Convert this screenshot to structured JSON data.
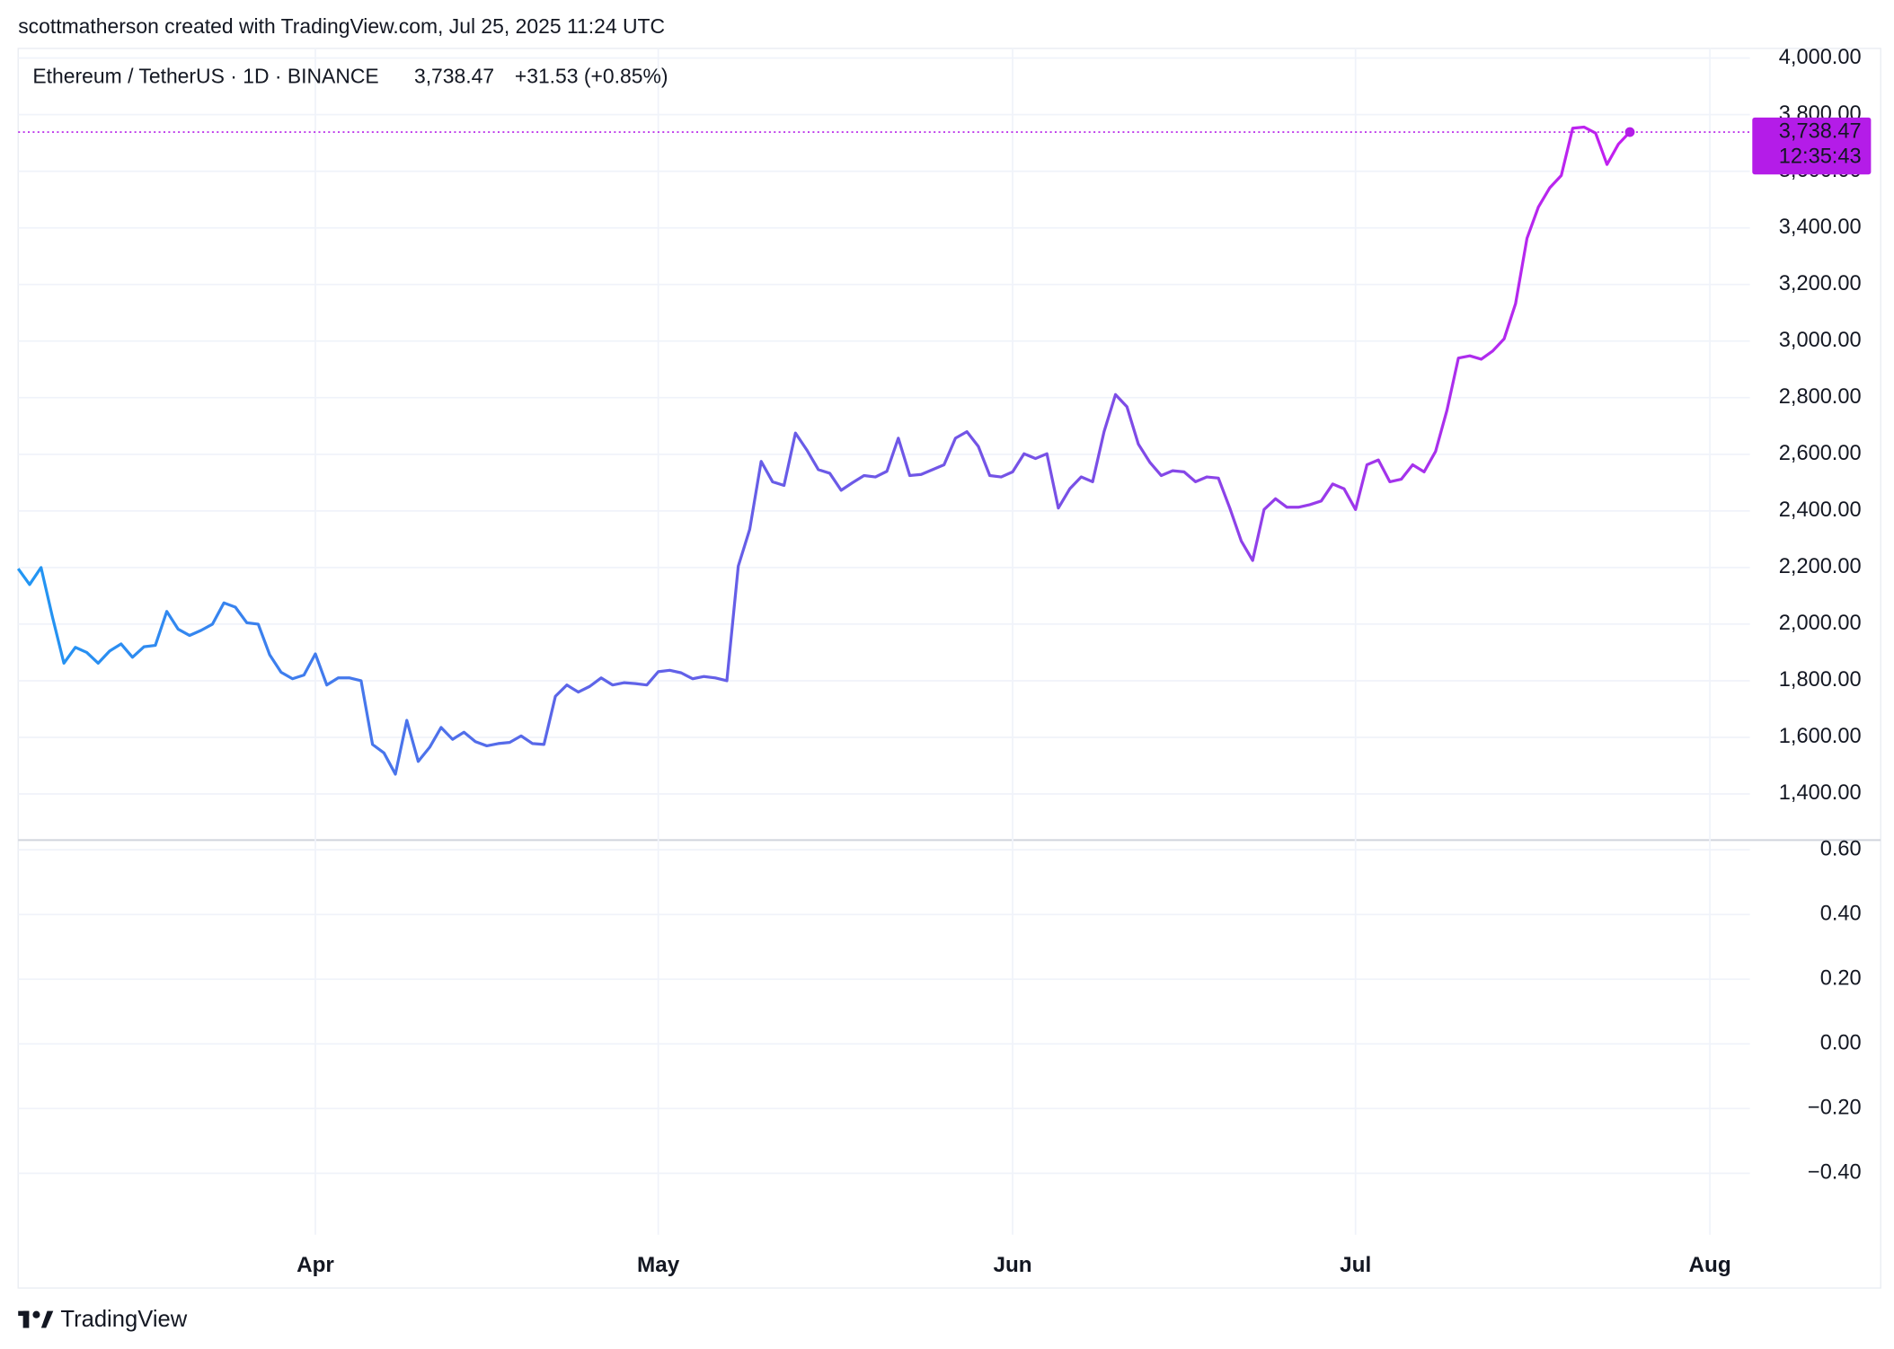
{
  "credit": "scottmatherson created with TradingView.com, Jul 25, 2025 11:24 UTC",
  "brand": "TradingView",
  "chart_data": [
    {
      "type": "line",
      "symbol": "Ethereum / TetherUS · 1D · BINANCE",
      "last_price": {
        "value": 3738.47,
        "label": "3,738.47"
      },
      "change": "+31.53 (+0.85%)",
      "countdown": "12:35:43",
      "price_color": "#b41ce8",
      "grid": true,
      "xlim": [
        0,
        151.5
      ],
      "xticks": [
        {
          "value": 26,
          "label": "Apr"
        },
        {
          "value": 56,
          "label": "May"
        },
        {
          "value": 87,
          "label": "Jun"
        },
        {
          "value": 117,
          "label": "Jul"
        },
        {
          "value": 148,
          "label": "Aug"
        }
      ],
      "ylim": [
        1237,
        4034
      ],
      "yticks": [
        {
          "value": 1400,
          "label": "1,400.00"
        },
        {
          "value": 1600,
          "label": "1,600.00"
        },
        {
          "value": 1800,
          "label": "1,800.00"
        },
        {
          "value": 2000,
          "label": "2,000.00"
        },
        {
          "value": 2200,
          "label": "2,200.00"
        },
        {
          "value": 2400,
          "label": "2,400.00"
        },
        {
          "value": 2600,
          "label": "2,600.00"
        },
        {
          "value": 2800,
          "label": "2,800.00"
        },
        {
          "value": 3000,
          "label": "3,000.00"
        },
        {
          "value": 3200,
          "label": "3,200.00"
        },
        {
          "value": 3400,
          "label": "3,400.00"
        },
        {
          "value": 3600,
          "label": "3,600.00"
        },
        {
          "value": 3800,
          "label": "3,800.00"
        },
        {
          "value": 4000,
          "label": "4,000.00"
        }
      ],
      "series": [
        {
          "gradient": [
            "#2196f3",
            "#5b66e8",
            "#7a4fe6",
            "#c41ef0"
          ],
          "x": [
            0,
            1,
            2,
            3,
            4,
            5,
            6,
            7,
            8,
            9,
            10,
            11,
            12,
            13,
            14,
            15,
            16,
            17,
            18,
            19,
            20,
            21,
            22,
            23,
            24,
            25,
            26,
            27,
            28,
            29,
            30,
            31,
            32,
            33,
            34,
            35,
            36,
            37,
            38,
            39,
            40,
            41,
            42,
            43,
            44,
            45,
            46,
            47,
            48,
            49,
            50,
            51,
            52,
            53,
            54,
            55,
            56,
            57,
            58,
            59,
            60,
            61,
            62,
            63,
            64,
            65,
            66,
            67,
            68,
            69,
            70,
            71,
            72,
            73,
            74,
            75,
            76,
            77,
            78,
            79,
            80,
            81,
            82,
            83,
            84,
            85,
            86,
            87,
            88,
            89,
            90,
            91,
            92,
            93,
            94,
            95,
            96,
            97,
            98,
            99,
            100,
            101,
            102,
            103,
            104,
            105,
            106,
            107,
            108,
            109,
            110,
            111,
            112,
            113,
            114,
            115,
            116,
            117,
            118,
            119,
            120,
            121,
            122,
            123,
            124,
            125,
            126,
            127,
            128,
            129,
            130,
            131,
            132,
            133,
            134,
            135,
            136,
            137,
            138,
            139,
            140,
            141
          ],
          "values": [
            2196,
            2140,
            2200,
            2025,
            1862,
            1918,
            1900,
            1862,
            1905,
            1930,
            1883,
            1920,
            1925,
            2045,
            1982,
            1960,
            1978,
            2000,
            2075,
            2060,
            2005,
            2000,
            1892,
            1830,
            1807,
            1820,
            1895,
            1785,
            1810,
            1810,
            1800,
            1575,
            1545,
            1470,
            1660,
            1515,
            1565,
            1635,
            1593,
            1618,
            1585,
            1570,
            1578,
            1582,
            1605,
            1578,
            1575,
            1745,
            1785,
            1760,
            1780,
            1810,
            1785,
            1793,
            1790,
            1785,
            1832,
            1837,
            1828,
            1807,
            1815,
            1810,
            1800,
            2205,
            2335,
            2575,
            2503,
            2490,
            2675,
            2615,
            2546,
            2533,
            2473,
            2500,
            2525,
            2520,
            2540,
            2657,
            2525,
            2529,
            2546,
            2563,
            2657,
            2680,
            2628,
            2525,
            2520,
            2538,
            2602,
            2585,
            2602,
            2410,
            2478,
            2520,
            2503,
            2680,
            2811,
            2768,
            2636,
            2572,
            2525,
            2542,
            2538,
            2503,
            2520,
            2516,
            2410,
            2294,
            2225,
            2405,
            2443,
            2413,
            2413,
            2422,
            2435,
            2495,
            2478,
            2405,
            2563,
            2580,
            2503,
            2512,
            2563,
            2538,
            2610,
            2756,
            2940,
            2948,
            2936,
            2965,
            3008,
            3132,
            3363,
            3474,
            3542,
            3585,
            3752,
            3756,
            3735,
            3624,
            3696,
            3738.47
          ]
        }
      ]
    },
    {
      "type": "pane",
      "ylim": [
        -0.59,
        0.63
      ],
      "yticks": [
        {
          "value": 0.6,
          "label": "0.60"
        },
        {
          "value": 0.4,
          "label": "0.40"
        },
        {
          "value": 0.2,
          "label": "0.20"
        },
        {
          "value": 0,
          "label": "0.00"
        },
        {
          "value": -0.2,
          "label": "−0.20"
        },
        {
          "value": -0.4,
          "label": "−0.40"
        }
      ]
    }
  ]
}
